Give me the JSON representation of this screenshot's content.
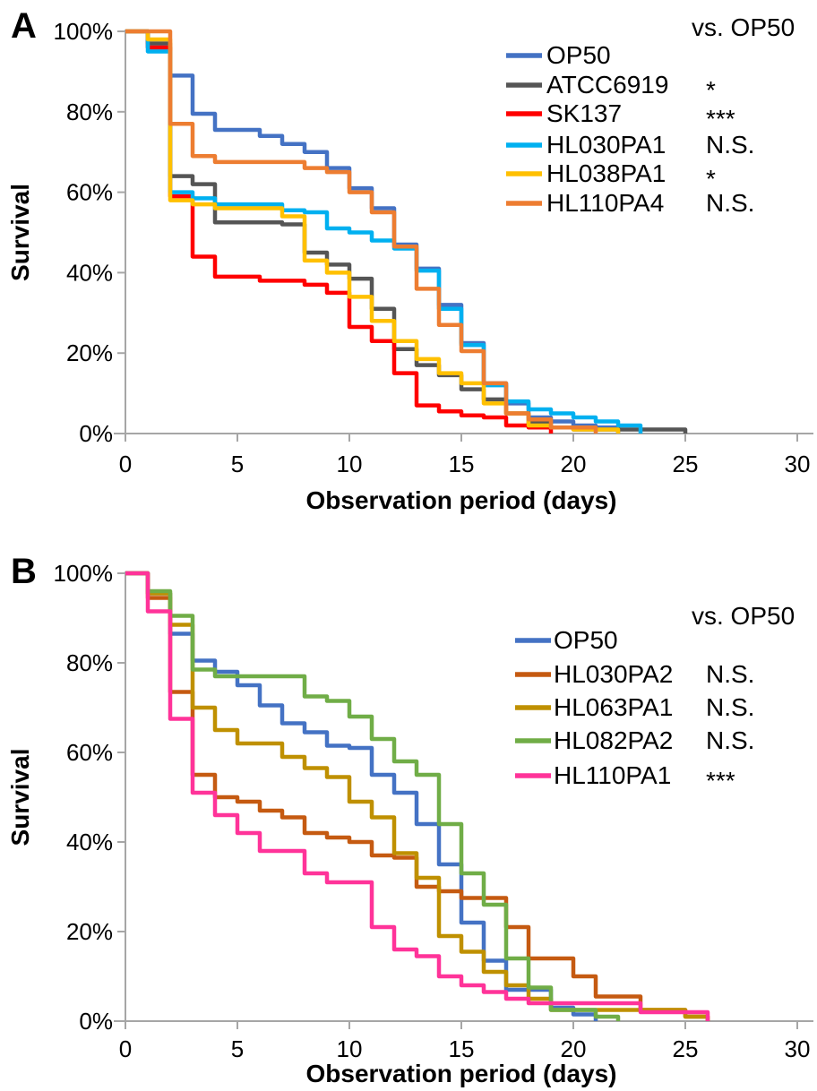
{
  "figure": {
    "description": "Survival of C. elegans on different bacterial strains, two stacked step-line panels",
    "background": "#ffffff",
    "axis_color": "#a6a6a6"
  },
  "chart_data": [
    {
      "type": "line",
      "subtype": "survival-step",
      "panel_label": "A",
      "legend_header": "vs. OP50",
      "xlabel": "Observation period (days)",
      "ylabel": "Survival",
      "xlim": [
        0,
        30
      ],
      "ylim_percent": [
        0,
        100
      ],
      "x_ticks": [
        0,
        5,
        10,
        15,
        20,
        25,
        30
      ],
      "y_tick_labels": [
        "100%",
        "80%",
        "60%",
        "40%",
        "20%",
        "0%"
      ],
      "y_tick_values": [
        100,
        80,
        60,
        40,
        20,
        0
      ],
      "grid": "off",
      "legend_position": "upper-right-inside",
      "series": [
        {
          "name": "OP50",
          "color": "#4472C4",
          "significance": "",
          "points": [
            [
              0,
              100
            ],
            [
              1,
              96
            ],
            [
              2,
              89
            ],
            [
              3,
              79.5
            ],
            [
              4,
              75.5
            ],
            [
              6,
              74
            ],
            [
              7,
              72
            ],
            [
              8,
              70
            ],
            [
              9,
              66
            ],
            [
              10,
              61
            ],
            [
              11,
              56
            ],
            [
              12,
              47
            ],
            [
              13,
              41
            ],
            [
              14,
              32
            ],
            [
              15,
              22.5
            ],
            [
              16,
              12.5
            ],
            [
              17,
              7.5
            ],
            [
              18,
              4
            ],
            [
              19,
              3
            ],
            [
              20,
              2
            ],
            [
              21,
              1.5
            ],
            [
              22,
              0
            ]
          ]
        },
        {
          "name": "ATCC6919",
          "color": "#555555",
          "significance": "*",
          "points": [
            [
              0,
              100
            ],
            [
              1,
              97
            ],
            [
              2,
              64
            ],
            [
              3,
              62
            ],
            [
              4,
              52.5
            ],
            [
              7,
              52
            ],
            [
              8,
              45
            ],
            [
              9,
              42
            ],
            [
              10,
              38.5
            ],
            [
              11,
              31
            ],
            [
              12,
              21
            ],
            [
              13,
              17
            ],
            [
              14,
              14.5
            ],
            [
              15,
              11
            ],
            [
              16,
              8.5
            ],
            [
              17,
              5
            ],
            [
              18,
              2.5
            ],
            [
              19,
              1.5
            ],
            [
              20,
              1
            ],
            [
              25,
              0
            ]
          ]
        },
        {
          "name": "SK137",
          "color": "#FF0000",
          "significance": "***",
          "points": [
            [
              0,
              100
            ],
            [
              1,
              96
            ],
            [
              2,
              59
            ],
            [
              3,
              44
            ],
            [
              4,
              39
            ],
            [
              6,
              38
            ],
            [
              8,
              37
            ],
            [
              9,
              35
            ],
            [
              10,
              26.5
            ],
            [
              11,
              23
            ],
            [
              12,
              15
            ],
            [
              13,
              7
            ],
            [
              14,
              5.5
            ],
            [
              15,
              4.5
            ],
            [
              16,
              4
            ],
            [
              17,
              2
            ],
            [
              18,
              1.5
            ],
            [
              19,
              0
            ]
          ]
        },
        {
          "name": "HL030PA1",
          "color": "#00B0F0",
          "significance": "N.S.",
          "points": [
            [
              0,
              100
            ],
            [
              1,
              95
            ],
            [
              2,
              60
            ],
            [
              3,
              58.5
            ],
            [
              4,
              57
            ],
            [
              7,
              55.5
            ],
            [
              8,
              55
            ],
            [
              9,
              51
            ],
            [
              10,
              50
            ],
            [
              11,
              48
            ],
            [
              12,
              46
            ],
            [
              13,
              40.5
            ],
            [
              14,
              31
            ],
            [
              15,
              22
            ],
            [
              16,
              12
            ],
            [
              17,
              8
            ],
            [
              18,
              6
            ],
            [
              19,
              5
            ],
            [
              20,
              4
            ],
            [
              21,
              3
            ],
            [
              22,
              2
            ],
            [
              23,
              0
            ]
          ]
        },
        {
          "name": "HL038PA1",
          "color": "#FFC000",
          "significance": "*",
          "points": [
            [
              0,
              100
            ],
            [
              1,
              98
            ],
            [
              2,
              58
            ],
            [
              3,
              57
            ],
            [
              4,
              56
            ],
            [
              7,
              54
            ],
            [
              8,
              43
            ],
            [
              9,
              40
            ],
            [
              10,
              34
            ],
            [
              11,
              28
            ],
            [
              12,
              23
            ],
            [
              13,
              18.5
            ],
            [
              14,
              15
            ],
            [
              15,
              12.5
            ],
            [
              16,
              7.5
            ],
            [
              17,
              5
            ],
            [
              18,
              2
            ],
            [
              19,
              1.5
            ],
            [
              20,
              1
            ],
            [
              22,
              0
            ]
          ]
        },
        {
          "name": "HL110PA4",
          "color": "#ED7D31",
          "significance": "N.S.",
          "points": [
            [
              0,
              100
            ],
            [
              2,
              77
            ],
            [
              3,
              69
            ],
            [
              4,
              67.5
            ],
            [
              8,
              66
            ],
            [
              9,
              65
            ],
            [
              10,
              60
            ],
            [
              11,
              55
            ],
            [
              12,
              46.5
            ],
            [
              13,
              36
            ],
            [
              14,
              27
            ],
            [
              15,
              20.5
            ],
            [
              16,
              12.5
            ],
            [
              17,
              5
            ],
            [
              18,
              3.5
            ],
            [
              19,
              1.5
            ],
            [
              21,
              0
            ]
          ]
        }
      ]
    },
    {
      "type": "line",
      "subtype": "survival-step",
      "panel_label": "B",
      "legend_header": "vs. OP50",
      "xlabel": "Observation period (days)",
      "ylabel": "Survival",
      "xlim": [
        0,
        30
      ],
      "ylim_percent": [
        0,
        100
      ],
      "x_ticks": [
        0,
        5,
        10,
        15,
        20,
        25,
        30
      ],
      "y_tick_labels": [
        "100%",
        "80%",
        "60%",
        "40%",
        "20%",
        "0%"
      ],
      "y_tick_values": [
        100,
        80,
        60,
        40,
        20,
        0
      ],
      "grid": "off",
      "legend_position": "upper-right-inside",
      "series": [
        {
          "name": "OP50",
          "color": "#4472C4",
          "significance": "",
          "points": [
            [
              0,
              100
            ],
            [
              1,
              95.5
            ],
            [
              2,
              86.5
            ],
            [
              3,
              80.5
            ],
            [
              4,
              78
            ],
            [
              5,
              75
            ],
            [
              6,
              70.5
            ],
            [
              7,
              66.5
            ],
            [
              8,
              64.5
            ],
            [
              9,
              61.5
            ],
            [
              10,
              61
            ],
            [
              11,
              55
            ],
            [
              12,
              51
            ],
            [
              13,
              44
            ],
            [
              14,
              35
            ],
            [
              15,
              22
            ],
            [
              16,
              13.5
            ],
            [
              17,
              7
            ],
            [
              19,
              3
            ],
            [
              20,
              1.5
            ],
            [
              21,
              0
            ]
          ]
        },
        {
          "name": "HL030PA2",
          "color": "#C55A11",
          "significance": "N.S.",
          "points": [
            [
              0,
              100
            ],
            [
              1,
              94.5
            ],
            [
              2,
              73.5
            ],
            [
              3,
              55
            ],
            [
              4,
              50
            ],
            [
              5,
              49
            ],
            [
              6,
              47
            ],
            [
              7,
              45.5
            ],
            [
              8,
              42
            ],
            [
              9,
              41
            ],
            [
              10,
              40
            ],
            [
              11,
              37
            ],
            [
              12,
              36.5
            ],
            [
              13,
              30
            ],
            [
              14,
              29
            ],
            [
              15,
              27.5
            ],
            [
              17,
              21
            ],
            [
              18,
              14
            ],
            [
              20,
              10
            ],
            [
              21,
              5.5
            ],
            [
              23,
              2.5
            ],
            [
              25,
              1
            ],
            [
              26,
              0
            ]
          ]
        },
        {
          "name": "HL063PA1",
          "color": "#BF9000",
          "significance": "N.S.",
          "points": [
            [
              0,
              100
            ],
            [
              1,
              95.5
            ],
            [
              2,
              88.5
            ],
            [
              3,
              70
            ],
            [
              4,
              65
            ],
            [
              5,
              62
            ],
            [
              7,
              59
            ],
            [
              8,
              56.5
            ],
            [
              9,
              54.5
            ],
            [
              10,
              49
            ],
            [
              11,
              45.5
            ],
            [
              12,
              37.5
            ],
            [
              13,
              32
            ],
            [
              14,
              19
            ],
            [
              15,
              15.5
            ],
            [
              16,
              11
            ],
            [
              17,
              8
            ],
            [
              18,
              5
            ],
            [
              19,
              2.5
            ],
            [
              25,
              1
            ],
            [
              26,
              0
            ]
          ]
        },
        {
          "name": "HL082PA2",
          "color": "#70AD47",
          "significance": "N.S.",
          "points": [
            [
              0,
              100
            ],
            [
              1,
              96
            ],
            [
              2,
              90.5
            ],
            [
              3,
              78.5
            ],
            [
              4,
              77
            ],
            [
              8,
              72.5
            ],
            [
              9,
              71.5
            ],
            [
              10,
              68
            ],
            [
              11,
              63
            ],
            [
              12,
              58
            ],
            [
              13,
              55
            ],
            [
              14,
              44
            ],
            [
              15,
              33
            ],
            [
              16,
              26
            ],
            [
              17,
              14
            ],
            [
              18,
              7.5
            ],
            [
              19,
              2.5
            ],
            [
              21,
              1
            ],
            [
              22,
              0
            ]
          ]
        },
        {
          "name": "HL110PA1",
          "color": "#FF3399",
          "significance": "***",
          "points": [
            [
              0,
              100
            ],
            [
              1,
              91.5
            ],
            [
              2,
              67.5
            ],
            [
              3,
              51
            ],
            [
              4,
              46
            ],
            [
              5,
              42
            ],
            [
              6,
              38
            ],
            [
              8,
              33
            ],
            [
              9,
              31
            ],
            [
              11,
              21
            ],
            [
              12,
              16
            ],
            [
              13,
              14.5
            ],
            [
              14,
              10
            ],
            [
              15,
              8
            ],
            [
              16,
              6.5
            ],
            [
              17,
              5
            ],
            [
              18,
              4
            ],
            [
              23,
              2
            ],
            [
              26,
              0
            ]
          ]
        }
      ]
    }
  ]
}
